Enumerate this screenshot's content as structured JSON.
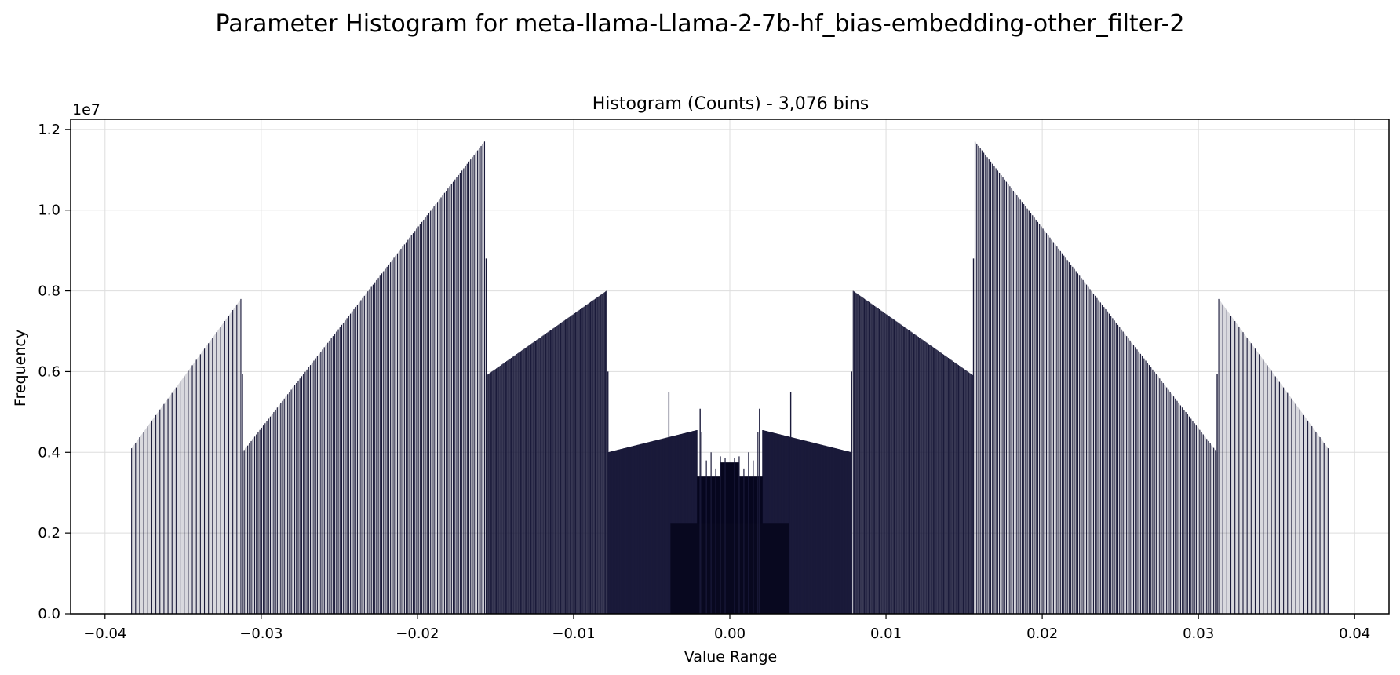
{
  "figure": {
    "suptitle": "Parameter Histogram for meta-llama-Llama-2-7b-hf_bias-embedding-other_filter-2"
  },
  "chart_data": {
    "type": "bar",
    "title": "Histogram (Counts) - 3,076 bins",
    "xlabel": "Value Range",
    "ylabel": "Frequency",
    "y_offset_label": "1e7",
    "xlim": [
      -0.0422,
      0.0422
    ],
    "ylim": [
      0,
      12250000
    ],
    "x_ticks": [
      -0.04,
      -0.03,
      -0.02,
      -0.01,
      0.0,
      0.01,
      0.02,
      0.03,
      0.04
    ],
    "x_tick_labels": [
      "−0.04",
      "−0.03",
      "−0.02",
      "−0.01",
      "0.00",
      "0.01",
      "0.02",
      "0.03",
      "0.04"
    ],
    "y_ticks": [
      0,
      2000000,
      4000000,
      6000000,
      8000000,
      10000000,
      12000000
    ],
    "y_tick_labels": [
      "0.0",
      "0.2",
      "0.4",
      "0.6",
      "0.8",
      "1.0",
      "1.2"
    ],
    "grid": true,
    "bar_color": "#1a1a3a",
    "bin_count": 3076,
    "segments": [
      {
        "x_start": -0.0383,
        "x_end": -0.0313,
        "y_start": 4100000,
        "y_end": 7800000,
        "count": 28,
        "fill": "#2a2a4a"
      },
      {
        "x_start": -0.0312,
        "x_end": -0.0157,
        "y_start": 4000000,
        "y_end": 11700000,
        "count": 140,
        "fill": "#2a2a4a"
      },
      {
        "x_start": -0.0156,
        "x_end": -0.0079,
        "y_start": 5900000,
        "y_end": 8000000,
        "count": 130,
        "fill": "#1e1e3c"
      },
      {
        "x_start": -0.0078,
        "x_end": -0.0021,
        "y_start": 4000000,
        "y_end": 4550000,
        "count": 200,
        "fill": "#0a0a22"
      },
      {
        "x_start": 0.0021,
        "x_end": 0.0078,
        "y_start": 4550000,
        "y_end": 4000000,
        "count": 200,
        "fill": "#0a0a22"
      },
      {
        "x_start": 0.0079,
        "x_end": 0.0156,
        "y_start": 8000000,
        "y_end": 5900000,
        "count": 130,
        "fill": "#1e1e3c"
      },
      {
        "x_start": 0.0157,
        "x_end": 0.0312,
        "y_start": 11700000,
        "y_end": 4000000,
        "count": 140,
        "fill": "#2a2a4a"
      },
      {
        "x_start": 0.0313,
        "x_end": 0.0383,
        "y_start": 7800000,
        "y_end": 4100000,
        "count": 28,
        "fill": "#2a2a4a"
      }
    ],
    "extra_bars": [
      {
        "x": -0.0156,
        "y": 8800000
      },
      {
        "x": 0.0156,
        "y": 8800000
      },
      {
        "x": -0.0312,
        "y": 5950000
      },
      {
        "x": 0.0312,
        "y": 5950000
      },
      {
        "x": -0.0078,
        "y": 6000000
      },
      {
        "x": 0.0078,
        "y": 6000000
      },
      {
        "x": -0.0039,
        "y": 5500000
      },
      {
        "x": 0.0039,
        "y": 5500000
      },
      {
        "x": -0.0019,
        "y": 5080000
      },
      {
        "x": 0.0019,
        "y": 5080000
      }
    ],
    "center_blocks": [
      {
        "x_start": -0.0021,
        "x_end": 0.0021,
        "y": 3400000,
        "fill": "#06061e"
      },
      {
        "x_start": -0.0006,
        "x_end": 0.0006,
        "y": 3750000,
        "fill": "#06061e"
      },
      {
        "x_start": -0.0038,
        "x_end": 0.0038,
        "y": 2250000,
        "fill": "#08081f"
      }
    ]
  }
}
